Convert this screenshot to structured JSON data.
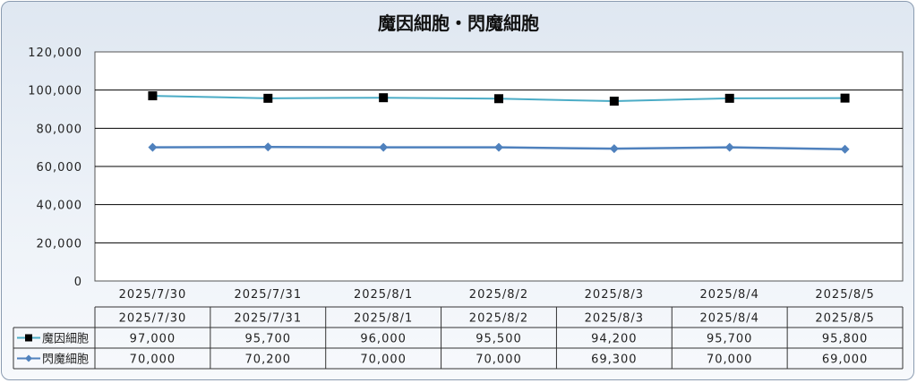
{
  "chart_data": {
    "type": "line",
    "title": "魔因細胞・閃魔細胞",
    "categories": [
      "2025/7/30",
      "2025/7/31",
      "2025/8/1",
      "2025/8/2",
      "2025/8/3",
      "2025/8/4",
      "2025/8/5"
    ],
    "ylim": [
      0,
      120000
    ],
    "yticks": [
      "0",
      "20,000",
      "40,000",
      "60,000",
      "80,000",
      "100,000",
      "120,000"
    ],
    "ytick_values": [
      0,
      20000,
      40000,
      60000,
      80000,
      100000,
      120000
    ],
    "grid": true,
    "legend": "data-table",
    "series": [
      {
        "name": "魔因細胞",
        "values": [
          97000,
          95700,
          96000,
          95500,
          94200,
          95700,
          95800
        ],
        "labels": [
          "97,000",
          "95,700",
          "96,000",
          "95,500",
          "94,200",
          "95,700",
          "95,800"
        ],
        "line_color": "#4bacc6",
        "marker": "square",
        "marker_color": "#000000"
      },
      {
        "name": "閃魔細胞",
        "values": [
          70000,
          70200,
          70000,
          70000,
          69300,
          70000,
          69000
        ],
        "labels": [
          "70,000",
          "70,200",
          "70,000",
          "70,000",
          "69,300",
          "70,000",
          "69,000"
        ],
        "line_color": "#4f81bd",
        "marker": "diamond",
        "marker_color": "#4f81bd"
      }
    ]
  }
}
